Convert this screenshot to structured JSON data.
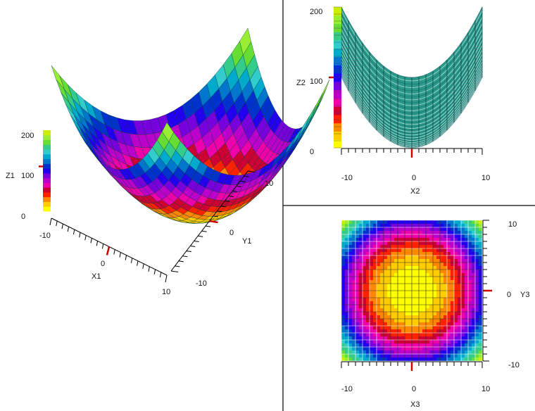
{
  "colors": {
    "scale": [
      "#ffff00",
      "#ffcc00",
      "#ff8800",
      "#ff2200",
      "#cc0033",
      "#ee00aa",
      "#bb00cc",
      "#7700dd",
      "#2200ee",
      "#0033cc",
      "#0077cc",
      "#00aacc",
      "#33cccc",
      "#33cc88",
      "#66dd33",
      "#99ee33",
      "#ccee00"
    ],
    "surface_mesh": "#1a6b6b",
    "surface_fill": "#2a9b8b",
    "marker": "#cc0000",
    "divider": "#333333"
  },
  "chart_data": [
    {
      "type": "surface3d",
      "function": "z = x^2 + y^2",
      "x": [
        -10,
        10
      ],
      "y": [
        -10,
        10
      ],
      "zlim": [
        0,
        200
      ],
      "xlabel": "X1",
      "ylabel": "Y1",
      "zlabel": "Z1",
      "x_ticks": [
        "-10",
        "0",
        "10"
      ],
      "y_ticks": [
        "-10",
        "0",
        "10"
      ],
      "z_ticks": [
        "0",
        "100",
        "200"
      ],
      "marker": {
        "axis": "x",
        "value": 0
      }
    },
    {
      "type": "line",
      "function": "z = x^2 + y^2 (side projection)",
      "x": [
        -10,
        10
      ],
      "zlim": [
        0,
        200
      ],
      "xlabel": "X2",
      "zlabel": "Z2",
      "x_ticks": [
        "-10",
        "0",
        "10"
      ],
      "z_ticks": [
        "0",
        "100",
        "200"
      ],
      "marker": {
        "axis": "x",
        "value": 0
      }
    },
    {
      "type": "heatmap",
      "function": "z = x^2 + y^2 (top view)",
      "x": [
        -10,
        10
      ],
      "y": [
        -10,
        10
      ],
      "xlabel": "X3",
      "ylabel": "Y3",
      "x_ticks": [
        "-10",
        "0",
        "10"
      ],
      "y_ticks": [
        "-10",
        "0",
        "10"
      ],
      "marker": {
        "axis": "y",
        "value": 0
      }
    }
  ]
}
